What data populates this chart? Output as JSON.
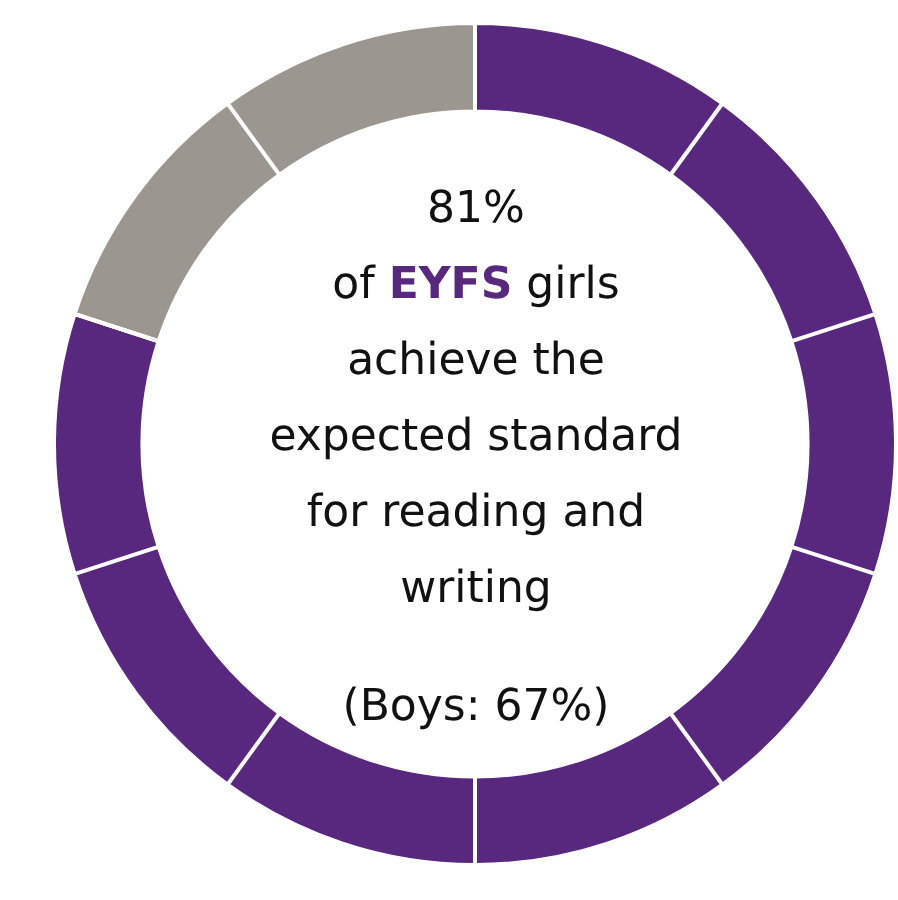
{
  "chart_data": {
    "type": "donut",
    "title": "81%",
    "categories": [
      null,
      null
    ],
    "values": [
      80,
      20
    ],
    "colors": [
      "#58287f",
      "#9b968f"
    ],
    "annotations": [
      "of EYFS girls achieve the expected standard for reading and writing",
      "(Boys: 67%)"
    ]
  }
}
